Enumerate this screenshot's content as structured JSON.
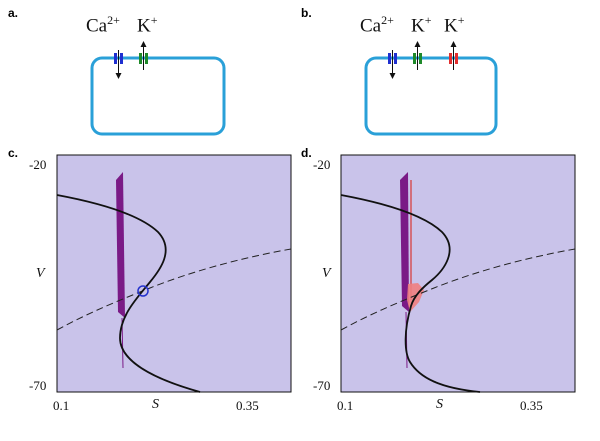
{
  "panels": {
    "a": {
      "letter": "a.",
      "ions": [
        "Ca",
        "2+",
        "K",
        "+"
      ]
    },
    "b": {
      "letter": "b.",
      "ions": [
        "Ca",
        "2+",
        "K",
        "+",
        "K",
        "+"
      ]
    },
    "c": {
      "letter": "c.",
      "y_top": "-20",
      "y_mid": "V",
      "y_bottom": "-70",
      "x_left": "0.1",
      "x_mid": "S",
      "x_right": "0.35"
    },
    "d": {
      "letter": "d.",
      "y_top": "-20",
      "y_mid": "V",
      "y_bottom": "-70",
      "x_left": "0.1",
      "x_mid": "S",
      "x_right": "0.35"
    }
  },
  "colors": {
    "cell_outline": "#2aa0d8",
    "ca_channel": "#1f2fd0",
    "k_channel": "#1f8a2a",
    "k2_channel": "#e23030",
    "background_region": "#c9c3ea",
    "purple_band": "#7a1a86",
    "red_band": "#f08080",
    "fixed_point": "#2432cc"
  }
}
